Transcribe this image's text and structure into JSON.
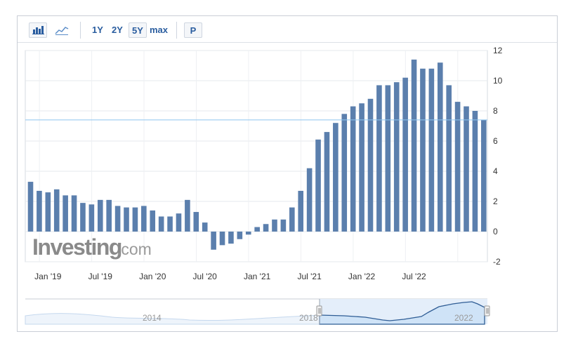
{
  "toolbar": {
    "bar_icon": "bar-chart-icon",
    "line_icon": "line-chart-icon",
    "ranges": [
      "1Y",
      "2Y",
      "5Y",
      "max"
    ],
    "active_range": "5Y",
    "p_label": "P"
  },
  "watermark": {
    "brand": "Investing",
    "suffix": ".com"
  },
  "colors": {
    "bar": "#5b7fad",
    "current_line": "#8ec5ef",
    "navigator_fill": "#cfe3f7",
    "navigator_line": "#2f5d95",
    "axis_text": "#333333"
  },
  "chart_data": {
    "type": "bar",
    "title": "",
    "xlabel": "",
    "ylabel": "",
    "ylim": [
      -2,
      12
    ],
    "yticks": [
      -2,
      0,
      2,
      4,
      6,
      8,
      10,
      12
    ],
    "y_axis_position": "right",
    "grid": true,
    "current_value_line": 7.4,
    "x_tick_labels": [
      "Jan '19",
      "Jul '19",
      "Jan '20",
      "Jul '20",
      "Jan '21",
      "Jul '21",
      "Jan '22",
      "Jul '22"
    ],
    "categories": [
      "Nov '18",
      "Dec '18",
      "Jan '19",
      "Feb '19",
      "Mar '19",
      "Apr '19",
      "May '19",
      "Jun '19",
      "Jul '19",
      "Aug '19",
      "Sep '19",
      "Oct '19",
      "Nov '19",
      "Dec '19",
      "Jan '20",
      "Feb '20",
      "Mar '20",
      "Apr '20",
      "May '20",
      "Jun '20",
      "Jul '20",
      "Aug '20",
      "Sep '20",
      "Oct '20",
      "Nov '20",
      "Dec '20",
      "Jan '21",
      "Feb '21",
      "Mar '21",
      "Apr '21",
      "May '21",
      "Jun '21",
      "Jul '21",
      "Aug '21",
      "Sep '21",
      "Oct '21",
      "Nov '21",
      "Dec '21",
      "Jan '22",
      "Feb '22",
      "Mar '22",
      "Apr '22",
      "May '22",
      "Jun '22",
      "Jul '22",
      "Aug '22",
      "Sep '22",
      "Oct '22",
      "Nov '22",
      "Dec '22",
      "Jan '23",
      "Feb '23",
      "Mar '23"
    ],
    "values": [
      3.3,
      2.7,
      2.6,
      2.8,
      2.4,
      2.4,
      1.9,
      1.8,
      2.1,
      2.1,
      1.7,
      1.6,
      1.6,
      1.7,
      1.4,
      1.0,
      1.0,
      1.2,
      2.1,
      1.3,
      0.6,
      -1.2,
      -0.9,
      -0.8,
      -0.5,
      -0.2,
      0.3,
      0.5,
      0.8,
      0.8,
      1.6,
      2.7,
      4.2,
      6.1,
      6.6,
      7.2,
      7.8,
      8.3,
      8.5,
      8.8,
      9.7,
      9.7,
      9.9,
      10.2,
      11.4,
      10.8,
      10.8,
      11.2,
      9.7,
      8.6,
      8.3,
      8.0,
      7.4
    ],
    "navigator": {
      "labels": [
        "2014",
        "2018",
        "2022"
      ],
      "selection_start_label": "2018"
    }
  }
}
